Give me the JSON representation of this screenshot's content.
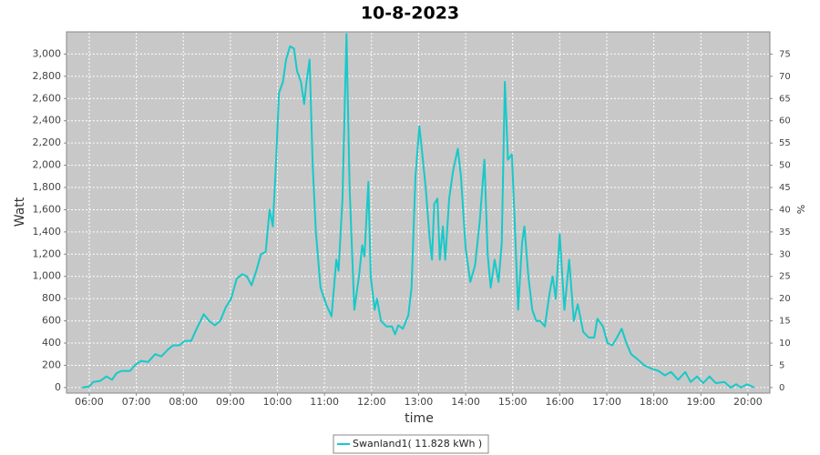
{
  "chart_data": {
    "type": "line",
    "title": "10-8-2023",
    "xlabel": "time",
    "ylabel": "Watt",
    "y2label": "%",
    "x": [
      "05:51",
      "06:00",
      "06:05",
      "06:14",
      "06:22",
      "06:29",
      "06:35",
      "06:41",
      "06:52",
      "06:58",
      "07:06",
      "07:15",
      "07:24",
      "07:32",
      "07:40",
      "07:47",
      "07:55",
      "08:02",
      "08:10",
      "08:17",
      "08:26",
      "08:33",
      "08:40",
      "08:47",
      "08:54",
      "09:01",
      "09:08",
      "09:15",
      "09:21",
      "09:27",
      "09:33",
      "09:39",
      "09:45",
      "09:50",
      "09:54",
      "09:58",
      "10:02",
      "10:07",
      "10:11",
      "10:16",
      "10:21",
      "10:25",
      "10:30",
      "10:34",
      "10:37",
      "10:41",
      "10:45",
      "10:49",
      "10:55",
      "11:02",
      "11:09",
      "11:15",
      "11:18",
      "11:23",
      "11:28",
      "11:32",
      "11:38",
      "11:44",
      "11:48",
      "11:51",
      "11:56",
      "11:59",
      "12:04",
      "12:07",
      "12:12",
      "12:19",
      "12:26",
      "12:30",
      "12:34",
      "12:40",
      "12:47",
      "12:51",
      "12:56",
      "13:01",
      "13:04",
      "13:09",
      "13:14",
      "13:17",
      "13:20",
      "13:24",
      "13:27",
      "13:31",
      "13:34",
      "13:39",
      "13:44",
      "13:50",
      "13:54",
      "14:00",
      "14:06",
      "14:12",
      "14:18",
      "14:24",
      "14:28",
      "14:32",
      "14:37",
      "14:42",
      "14:46",
      "14:50",
      "14:54",
      "14:59",
      "15:02",
      "15:07",
      "15:12",
      "15:15",
      "15:20",
      "15:25",
      "15:30",
      "15:35",
      "15:41",
      "15:47",
      "15:51",
      "15:55",
      "16:00",
      "16:06",
      "16:12",
      "16:18",
      "16:23",
      "16:30",
      "16:37",
      "16:44",
      "16:48",
      "16:55",
      "17:01",
      "17:07",
      "17:13",
      "17:19",
      "17:25",
      "17:31",
      "17:40",
      "17:48",
      "17:57",
      "18:06",
      "18:14",
      "18:22",
      "18:31",
      "18:40",
      "18:47",
      "18:55",
      "19:03",
      "19:11",
      "19:19",
      "19:30",
      "19:38",
      "19:45",
      "19:51",
      "19:59",
      "20:08"
    ],
    "series": [
      {
        "name": "Swanland1( 11.828 kWh )",
        "color": "#17c9c9",
        "values": [
          0,
          10,
          50,
          60,
          100,
          70,
          130,
          150,
          150,
          200,
          240,
          230,
          300,
          280,
          340,
          380,
          380,
          420,
          420,
          530,
          660,
          600,
          560,
          600,
          720,
          800,
          980,
          1020,
          1000,
          920,
          1050,
          1200,
          1220,
          1600,
          1450,
          2000,
          2650,
          2750,
          2950,
          3070,
          3050,
          2850,
          2750,
          2550,
          2750,
          2950,
          2000,
          1400,
          900,
          750,
          640,
          1150,
          1050,
          1700,
          3180,
          1800,
          700,
          1000,
          1280,
          1180,
          1850,
          1000,
          700,
          800,
          600,
          550,
          550,
          480,
          560,
          530,
          650,
          900,
          1900,
          2350,
          2150,
          1800,
          1350,
          1150,
          1650,
          1700,
          1150,
          1450,
          1150,
          1700,
          1950,
          2150,
          1900,
          1250,
          950,
          1100,
          1500,
          2050,
          1200,
          900,
          1150,
          950,
          1300,
          2750,
          2050,
          2100,
          1600,
          700,
          1300,
          1450,
          1000,
          700,
          600,
          600,
          550,
          850,
          1000,
          800,
          1380,
          700,
          1150,
          600,
          750,
          500,
          450,
          450,
          620,
          550,
          400,
          380,
          450,
          530,
          400,
          300,
          250,
          200,
          170,
          150,
          110,
          140,
          70,
          140,
          50,
          100,
          40,
          100,
          40,
          50,
          0,
          30,
          0,
          30,
          0
        ]
      }
    ],
    "xlim": [
      "05:31",
      "20:28"
    ],
    "xticks": [
      "06:00",
      "07:00",
      "08:00",
      "09:00",
      "10:00",
      "11:00",
      "12:00",
      "13:00",
      "14:00",
      "15:00",
      "16:00",
      "17:00",
      "18:00",
      "19:00",
      "20:00"
    ],
    "ylim": [
      -50,
      3200
    ],
    "yticks": [
      0,
      200,
      400,
      600,
      800,
      {
        "value": 1000,
        "label": "1,000"
      },
      {
        "value": 1200,
        "label": "1,200"
      },
      {
        "value": 1400,
        "label": "1,400"
      },
      {
        "value": 1600,
        "label": "1,600"
      },
      {
        "value": 1800,
        "label": "1,800"
      },
      {
        "value": 2000,
        "label": "2,000"
      },
      {
        "value": 2200,
        "label": "2,200"
      },
      {
        "value": 2400,
        "label": "2,400"
      },
      {
        "value": 2600,
        "label": "2,600"
      },
      {
        "value": 2800,
        "label": "2,800"
      },
      {
        "value": 3000,
        "label": "3,000"
      }
    ],
    "y2lim": [
      -1.25,
      80
    ],
    "y2ticks": [
      0,
      5,
      10,
      15,
      20,
      25,
      30,
      35,
      40,
      45,
      50,
      55,
      60,
      65,
      70,
      75
    ],
    "grid": true
  }
}
